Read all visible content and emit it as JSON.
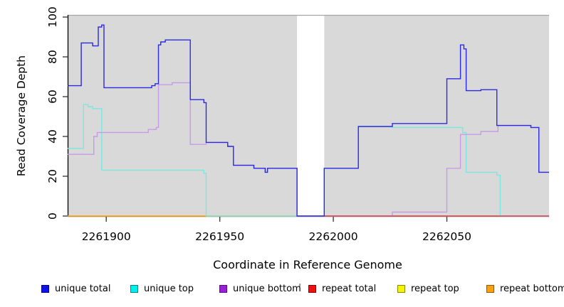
{
  "figure": {
    "background": "#ffffff",
    "panel_background": "#d9d9d9",
    "panel_top_border": "#a6a6a6",
    "axis_color": "#000000",
    "tick_color": "#404040"
  },
  "chart_data": {
    "type": "line",
    "subtype": "step-coverage-plot",
    "title": "",
    "xlabel": "Coordinate in Reference Genome",
    "ylabel": "Read Coverage Depth",
    "xlim": [
      2261883,
      2262095
    ],
    "ylim": [
      0,
      100
    ],
    "xticks": [
      2261900,
      2261950,
      2262000,
      2262050
    ],
    "yticks": [
      0,
      20,
      40,
      60,
      80,
      100
    ],
    "grid": false,
    "legend_position": "bottom",
    "no_data_region": [
      2261984,
      2261996
    ],
    "series": [
      {
        "name": "repeat top",
        "color": "#f2f22a",
        "points": [
          [
            2261883,
            0
          ],
          [
            2262095,
            0
          ]
        ]
      },
      {
        "name": "repeat bottom",
        "color": "#ff9f1a",
        "points": [
          [
            2261883,
            0
          ],
          [
            2262095,
            0
          ]
        ]
      },
      {
        "name": "unique top",
        "color": "#7ce6e0",
        "points": [
          [
            2261883,
            34
          ],
          [
            2261890,
            56
          ],
          [
            2261892,
            55
          ],
          [
            2261894,
            54
          ],
          [
            2261898,
            23
          ],
          [
            2261943,
            21.5
          ],
          [
            2261944,
            0
          ],
          [
            2261996,
            24
          ],
          [
            2262011,
            45
          ],
          [
            2262026,
            44.5
          ],
          [
            2262057,
            42
          ],
          [
            2262058.5,
            22
          ],
          [
            2262072,
            20.5
          ],
          [
            2262073.5,
            0
          ],
          [
            2262095,
            0
          ]
        ]
      },
      {
        "name": "unique bottom",
        "color": "#c79ae8",
        "points": [
          [
            2261883,
            31
          ],
          [
            2261894.5,
            40
          ],
          [
            2261896,
            42
          ],
          [
            2261918.5,
            43.5
          ],
          [
            2261922,
            44.5
          ],
          [
            2261923,
            66
          ],
          [
            2261929,
            67
          ],
          [
            2261937,
            36
          ],
          [
            2261944,
            37
          ],
          [
            2261953.5,
            35
          ],
          [
            2261956,
            25.5
          ],
          [
            2261965,
            24
          ],
          [
            2261970,
            22
          ],
          [
            2261971,
            24
          ],
          [
            2261984,
            0
          ],
          [
            2262026,
            2
          ],
          [
            2262050,
            24
          ],
          [
            2262056,
            41
          ],
          [
            2262065,
            42.5
          ],
          [
            2262072.5,
            45.5
          ],
          [
            2262087,
            44.5
          ],
          [
            2262090.5,
            22
          ],
          [
            2262095,
            22
          ]
        ]
      },
      {
        "name": "repeat total",
        "color": "#d04568",
        "points": [
          [
            2261996,
            0
          ],
          [
            2262026,
            0
          ]
        ]
      },
      {
        "name": "unique total",
        "color": "#2a2ae6",
        "points": [
          [
            2261883,
            65.5
          ],
          [
            2261889,
            87
          ],
          [
            2261894,
            85.5
          ],
          [
            2261896.5,
            95
          ],
          [
            2261898,
            96
          ],
          [
            2261899,
            64.5
          ],
          [
            2261920,
            65.5
          ],
          [
            2261921.5,
            66.5
          ],
          [
            2261923,
            86
          ],
          [
            2261924,
            87.5
          ],
          [
            2261926,
            88.5
          ],
          [
            2261937,
            58.5
          ],
          [
            2261943,
            57
          ],
          [
            2261944,
            37
          ],
          [
            2261953.5,
            35
          ],
          [
            2261956,
            25.5
          ],
          [
            2261965,
            24
          ],
          [
            2261970,
            22
          ],
          [
            2261971,
            24
          ],
          [
            2261984,
            0
          ],
          [
            2261996,
            24
          ],
          [
            2262011,
            45
          ],
          [
            2262026,
            46.5
          ],
          [
            2262050,
            69
          ],
          [
            2262056,
            86
          ],
          [
            2262057.5,
            84
          ],
          [
            2262058.5,
            63
          ],
          [
            2262065,
            63.5
          ],
          [
            2262072,
            45.5
          ],
          [
            2262087,
            44.5
          ],
          [
            2262090.5,
            22
          ],
          [
            2262095,
            22
          ]
        ]
      }
    ],
    "legend": [
      {
        "label": "unique total",
        "fill": "#1111ee",
        "border": "#00008b"
      },
      {
        "label": "unique top",
        "fill": "#00eeee",
        "border": "#00888a"
      },
      {
        "label": "unique bottom",
        "fill": "#9a1fd6",
        "border": "#5a0f80"
      },
      {
        "label": "repeat total",
        "fill": "#ee1111",
        "border": "#8b0000"
      },
      {
        "label": "repeat top",
        "fill": "#f5f500",
        "border": "#8a8a00"
      },
      {
        "label": "repeat bottom",
        "fill": "#ffa010",
        "border": "#8a5a00"
      }
    ]
  }
}
